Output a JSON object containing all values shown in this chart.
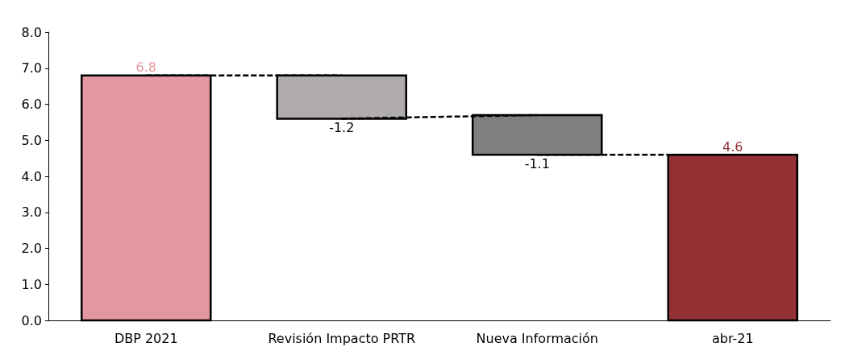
{
  "chart_data": {
    "type": "bar",
    "categories": [
      "DBP 2021",
      "Revisión Impacto PRTR",
      "Nueva Información",
      "abr-21"
    ],
    "series": [
      {
        "values": [
          6.8,
          -1.2,
          -1.1,
          4.6
        ],
        "base": [
          0,
          6.8,
          5.7,
          0
        ],
        "colors": [
          "#e3979f",
          "#b0acab",
          "#7f7f7f",
          "#943135"
        ],
        "value_labels": [
          "6.8",
          "-1.2",
          "-1.1",
          "4.6"
        ]
      },
      {
        "type": "line",
        "color": "#000000",
        "line_style": "dashed",
        "marker": "none",
        "values": [
          6.8,
          6.8,
          null,
          null
        ]
      },
      {
        "type": "line",
        "color": "#000000",
        "line_style": "dashed",
        "marker": "none",
        "values": [
          null,
          5.6,
          5.7,
          null
        ]
      },
      {
        "type": "line",
        "color": "#000000",
        "line_style": "dashed",
        "marker": "none",
        "values": [
          null,
          null,
          4.6,
          4.6
        ]
      }
    ],
    "ylim": [
      0,
      8
    ],
    "yticks": [
      {
        "value": 0,
        "label": "0.0"
      },
      {
        "value": 1,
        "label": "1.0"
      },
      {
        "value": 2,
        "label": "2.0"
      },
      {
        "value": 3,
        "label": "3.0"
      },
      {
        "value": 4,
        "label": "4.0"
      },
      {
        "value": 5,
        "label": "5.0"
      },
      {
        "value": 6,
        "label": "6.0"
      },
      {
        "value": 7,
        "label": "7.0"
      },
      {
        "value": 8,
        "label": "8.0"
      }
    ],
    "grid": false
  }
}
